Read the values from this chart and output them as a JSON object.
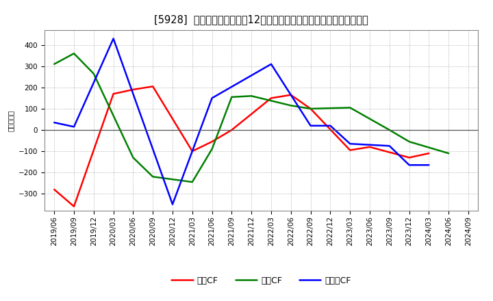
{
  "title": "[5928]  キャッシュフローの12か月移動合計の対前年同期増減額の推移",
  "ylabel": "（百万円）",
  "background_color": "#ffffff",
  "plot_bg_color": "#ffffff",
  "grid_color": "#aaaaaa",
  "xlabels": [
    "2019/06",
    "2019/09",
    "2019/12",
    "2020/03",
    "2020/06",
    "2020/09",
    "2020/12",
    "2021/03",
    "2021/06",
    "2021/09",
    "2021/12",
    "2022/03",
    "2022/06",
    "2022/09",
    "2022/12",
    "2023/03",
    "2023/06",
    "2023/09",
    "2023/12",
    "2024/03",
    "2024/06",
    "2024/09"
  ],
  "series": {
    "operating_cf": {
      "label": "営業CF",
      "color": "#ff0000",
      "data_x": [
        0,
        1,
        3,
        4,
        5,
        7,
        8,
        9,
        11,
        12,
        13,
        15,
        16,
        18,
        19
      ],
      "data_y": [
        -280,
        -360,
        170,
        190,
        205,
        -100,
        -55,
        0,
        150,
        165,
        100,
        -95,
        -80,
        -130,
        -110
      ]
    },
    "investing_cf": {
      "label": "投賄CF",
      "color": "#008000",
      "data_x": [
        0,
        1,
        2,
        4,
        5,
        7,
        8,
        9,
        10,
        12,
        13,
        15,
        17,
        18,
        20
      ],
      "data_y": [
        310,
        360,
        265,
        -130,
        -220,
        -245,
        -90,
        155,
        160,
        115,
        100,
        105,
        0,
        -55,
        -110
      ]
    },
    "free_cf": {
      "label": "フリーCF",
      "color": "#0000ff",
      "data_x": [
        0,
        1,
        3,
        6,
        8,
        11,
        13,
        14,
        15,
        17,
        18,
        19
      ],
      "data_y": [
        35,
        15,
        430,
        -350,
        150,
        310,
        20,
        20,
        -65,
        -75,
        -165,
        -165
      ]
    }
  },
  "ylim": [
    -380,
    470
  ],
  "yticks": [
    -300,
    -200,
    -100,
    0,
    100,
    200,
    300,
    400
  ],
  "title_fontsize": 10.5,
  "legend_fontsize": 9,
  "axis_fontsize": 7.5
}
